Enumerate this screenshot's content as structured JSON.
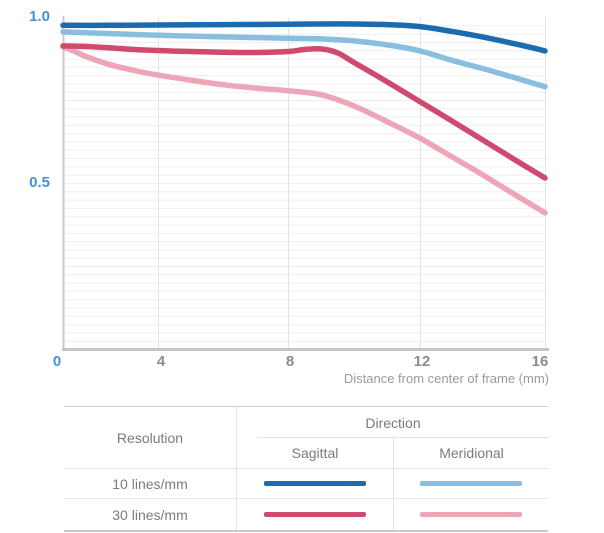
{
  "chart_data": {
    "type": "line",
    "title": "",
    "xlabel": "Distance from center of frame (mm)",
    "ylabel": "",
    "xlim": [
      0,
      16
    ],
    "ylim": [
      0,
      1.0
    ],
    "xticks": [
      0,
      4,
      8,
      12,
      16
    ],
    "xtick_labels": [
      "0",
      "4",
      "8",
      "12",
      "16"
    ],
    "yticks": [
      1.0,
      0.5
    ],
    "ytick_labels": [
      "1.0",
      "0.5"
    ],
    "grid": {
      "on": true,
      "h_step": 0.025,
      "v_at": [
        4,
        8,
        12,
        16
      ]
    },
    "legend_position": "bottom-table",
    "axis_label_colors": {
      "y_and_origin": "#4790d2",
      "x_ticks": "#8c8c8c"
    },
    "series": [
      {
        "name": "10 lines/mm Sagittal",
        "color": "#1a6bb0",
        "x": [
          0,
          2,
          4,
          6,
          8,
          9,
          10,
          11,
          12,
          13,
          14,
          15,
          16
        ],
        "y": [
          0.975,
          0.975,
          0.976,
          0.977,
          0.978,
          0.979,
          0.979,
          0.977,
          0.971,
          0.957,
          0.94,
          0.92,
          0.898
        ]
      },
      {
        "name": "10 lines/mm Meridional",
        "color": "#8abede",
        "x": [
          0,
          2,
          4,
          6,
          8,
          9,
          10,
          11,
          12,
          13,
          14,
          15,
          16
        ],
        "y": [
          0.955,
          0.95,
          0.945,
          0.94,
          0.936,
          0.934,
          0.928,
          0.916,
          0.898,
          0.87,
          0.845,
          0.818,
          0.79
        ]
      },
      {
        "name": "30 lines/mm Sagittal",
        "color": "#cf4a6e",
        "x": [
          0,
          1,
          2,
          3,
          4,
          5,
          6,
          7,
          8,
          8.5,
          9,
          9.5,
          10,
          11,
          12,
          13,
          14,
          15,
          16
        ],
        "y": [
          0.913,
          0.911,
          0.907,
          0.902,
          0.899,
          0.896,
          0.894,
          0.893,
          0.896,
          0.902,
          0.904,
          0.892,
          0.863,
          0.805,
          0.745,
          0.688,
          0.63,
          0.572,
          0.515
        ]
      },
      {
        "name": "30 lines/mm Meridional",
        "color": "#eea5b7",
        "x": [
          0,
          0.5,
          1,
          2,
          3,
          4,
          5,
          6,
          7,
          8,
          9,
          10,
          11,
          12,
          13,
          14,
          15,
          16
        ],
        "y": [
          0.91,
          0.896,
          0.88,
          0.856,
          0.839,
          0.825,
          0.81,
          0.796,
          0.786,
          0.778,
          0.766,
          0.732,
          0.685,
          0.635,
          0.58,
          0.525,
          0.467,
          0.41
        ]
      }
    ]
  },
  "table": {
    "resolution_header": "Resolution",
    "direction_header": "Direction",
    "sub_headers": [
      "Sagittal",
      "Meridional"
    ],
    "rows": [
      {
        "resolution": "10 lines/mm",
        "sagittal_color": "#1a6bb0",
        "meridional_color": "#8abede"
      },
      {
        "resolution": "30 lines/mm",
        "sagittal_color": "#cf4a6e",
        "meridional_color": "#eea5b7"
      }
    ]
  }
}
